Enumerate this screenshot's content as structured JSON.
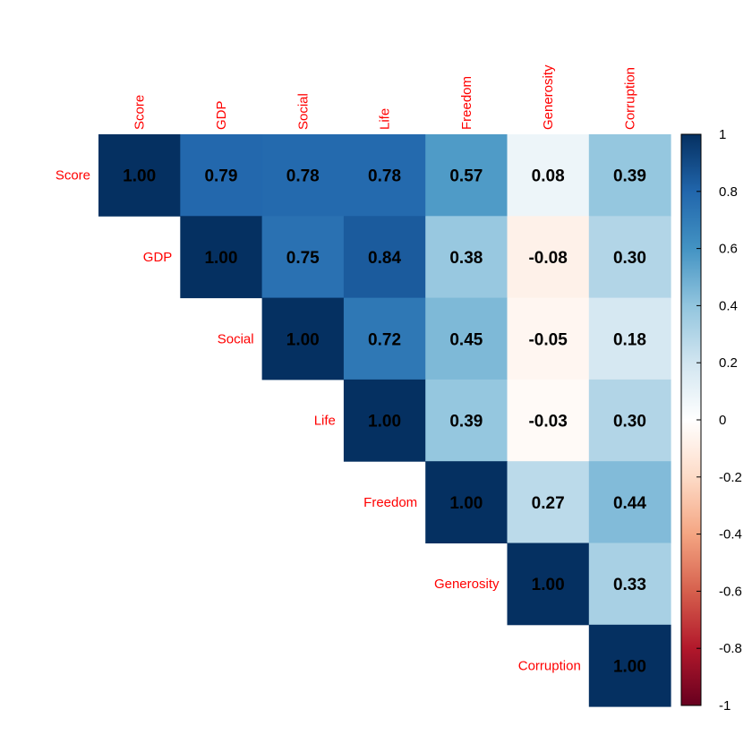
{
  "chart_data": {
    "type": "heatmap",
    "variables": [
      "Score",
      "GDP",
      "Social",
      "Life",
      "Freedom",
      "Generosity",
      "Corruption"
    ],
    "matrix": [
      [
        1.0,
        0.79,
        0.78,
        0.78,
        0.57,
        0.08,
        0.39
      ],
      [
        null,
        1.0,
        0.75,
        0.84,
        0.38,
        -0.08,
        0.3
      ],
      [
        null,
        null,
        1.0,
        0.72,
        0.45,
        -0.05,
        0.18
      ],
      [
        null,
        null,
        null,
        1.0,
        0.39,
        -0.03,
        0.3
      ],
      [
        null,
        null,
        null,
        null,
        1.0,
        0.27,
        0.44
      ],
      [
        null,
        null,
        null,
        null,
        null,
        1.0,
        0.33
      ],
      [
        null,
        null,
        null,
        null,
        null,
        null,
        1.0
      ]
    ],
    "matrix_shape": "upper-triangle",
    "value_format": "2 decimals",
    "color_scale": {
      "range": [
        -1,
        1
      ],
      "ticks": [
        "1",
        "0.8",
        "0.6",
        "0.4",
        "0.2",
        "0",
        "-0.2",
        "-0.4",
        "-0.6",
        "-0.8",
        "-1"
      ],
      "stops": [
        "#67001F",
        "#B2182B",
        "#D6604D",
        "#F4A582",
        "#FDDBC7",
        "#FFFFFF",
        "#D1E5F0",
        "#92C5DE",
        "#4393C3",
        "#2166AC",
        "#053061"
      ]
    },
    "label_color": "#FF0000",
    "legend_position": "right"
  }
}
